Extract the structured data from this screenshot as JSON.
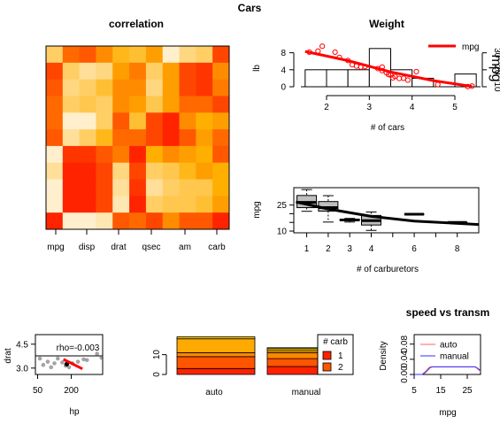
{
  "page": {
    "title": "Cars"
  },
  "colors": {
    "heat_white": "#ffffff",
    "heat_yellow": "#ffff66",
    "heat_orange": "#ff9900",
    "heat_red": "#ff0000",
    "mpg_line": "#ff0000",
    "auto": "#ff6060",
    "manual": "#3030ff"
  },
  "chart_data": [
    {
      "id": "correlation",
      "type": "heatmap",
      "title": "correlation",
      "x_tick_labels": [
        "mpg",
        "disp",
        "drat",
        "qsec",
        "am",
        "carb"
      ],
      "grid_values": [
        [
          0.3,
          0.7,
          0.75,
          0.6,
          0.45,
          0.4,
          0.55,
          0.1,
          0.25,
          0.3,
          0.8
        ],
        [
          0.8,
          0.3,
          0.2,
          0.25,
          0.55,
          0.65,
          0.3,
          0.55,
          0.8,
          0.85,
          0.6
        ],
        [
          0.75,
          0.25,
          0.3,
          0.4,
          0.6,
          0.6,
          0.25,
          0.55,
          0.8,
          0.85,
          0.65
        ],
        [
          0.7,
          0.3,
          0.35,
          0.3,
          0.6,
          0.55,
          0.35,
          0.55,
          0.7,
          0.7,
          0.8
        ],
        [
          0.7,
          0.1,
          0.1,
          0.3,
          0.75,
          0.4,
          0.8,
          0.9,
          0.6,
          0.5,
          0.55
        ],
        [
          0.75,
          0.2,
          0.3,
          0.45,
          0.7,
          0.7,
          0.8,
          0.9,
          0.75,
          0.55,
          0.7
        ],
        [
          0.1,
          0.85,
          0.85,
          0.75,
          0.65,
          0.9,
          0.5,
          0.6,
          0.55,
          0.5,
          0.75
        ],
        [
          0.2,
          0.9,
          0.9,
          0.8,
          0.25,
          0.8,
          0.3,
          0.35,
          0.45,
          0.55,
          0.5
        ],
        [
          0.1,
          0.9,
          0.9,
          0.8,
          0.2,
          0.85,
          0.2,
          0.3,
          0.35,
          0.35,
          0.5
        ],
        [
          0.1,
          0.9,
          0.9,
          0.8,
          0.15,
          0.9,
          0.3,
          0.35,
          0.35,
          0.4,
          0.55
        ],
        [
          0.9,
          0.1,
          0.1,
          0.15,
          0.75,
          0.7,
          0.8,
          0.6,
          0.75,
          0.75,
          0.9
        ]
      ]
    },
    {
      "id": "weight",
      "type": "bar",
      "title": "Weight",
      "xlabel": "# of cars",
      "ylabel": "lb",
      "x_ticks": [
        2,
        3,
        4,
        5
      ],
      "y_ticks": [
        0,
        4,
        8
      ],
      "right_y_ticks": [
        10,
        20,
        30
      ],
      "right_axis_label": "mpg",
      "xlim": [
        1.4,
        5.6
      ],
      "ylim": [
        0,
        10
      ],
      "histogram": [
        {
          "from": 1.5,
          "to": 2.0,
          "count": 4
        },
        {
          "from": 2.0,
          "to": 2.5,
          "count": 4
        },
        {
          "from": 2.5,
          "to": 3.0,
          "count": 4
        },
        {
          "from": 3.0,
          "to": 3.5,
          "count": 9
        },
        {
          "from": 3.5,
          "to": 4.0,
          "count": 4
        },
        {
          "from": 4.0,
          "to": 4.5,
          "count": 2
        },
        {
          "from": 4.5,
          "to": 5.0,
          "count": 0
        },
        {
          "from": 5.0,
          "to": 5.5,
          "count": 3
        }
      ],
      "mpg_points": [
        [
          1.6,
          30.4
        ],
        [
          1.8,
          31.0
        ],
        [
          1.9,
          33.9
        ],
        [
          2.2,
          30.4
        ],
        [
          2.3,
          27.3
        ],
        [
          2.5,
          25.5
        ],
        [
          2.6,
          23.0
        ],
        [
          2.7,
          22.2
        ],
        [
          2.8,
          21.6
        ],
        [
          2.9,
          21.9
        ],
        [
          3.2,
          20.7
        ],
        [
          3.3,
          21.6
        ],
        [
          3.3,
          19.5
        ],
        [
          3.4,
          18.3
        ],
        [
          3.45,
          17.2
        ],
        [
          3.5,
          16.9
        ],
        [
          3.55,
          15.3
        ],
        [
          3.6,
          16.1
        ],
        [
          3.7,
          14.9
        ],
        [
          3.8,
          15.0
        ],
        [
          3.9,
          13.9
        ],
        [
          4.1,
          18.9
        ],
        [
          4.6,
          11.3
        ],
        [
          5.3,
          10.1
        ],
        [
          5.4,
          10.4
        ]
      ],
      "mpg_line": [
        [
          1.5,
          30.8
        ],
        [
          2.5,
          25.4
        ],
        [
          3.5,
          18.7
        ],
        [
          4.5,
          13.6
        ],
        [
          5.4,
          10.2
        ]
      ],
      "legend": {
        "label": "mpg",
        "position": "top-right"
      }
    },
    {
      "id": "carburetors",
      "type": "box",
      "title": "",
      "xlabel": "# of carburetors",
      "ylabel": "mpg",
      "x_ticks": [
        1,
        2,
        3,
        4,
        5,
        6,
        7,
        8
      ],
      "y_ticks": [
        10,
        15,
        20,
        25
      ],
      "y_tick_labels": [
        "10",
        "",
        "",
        "25"
      ],
      "xlim": [
        0.4,
        9.0
      ],
      "ylim": [
        9,
        35
      ],
      "boxes": [
        {
          "carb": 1,
          "min": 21.4,
          "q1": 23.5,
          "median": 26.5,
          "q3": 30.5,
          "max": 33.9
        },
        {
          "carb": 2,
          "min": 15.2,
          "q1": 21.5,
          "median": 23.5,
          "q3": 27.0,
          "max": 30.4
        },
        {
          "carb": 3,
          "min": 15.2,
          "q1": 16.0,
          "median": 16.4,
          "q3": 16.9,
          "max": 17.3
        },
        {
          "carb": 4,
          "min": 10.4,
          "q1": 13.5,
          "median": 16.0,
          "q3": 19.0,
          "max": 21.0
        },
        {
          "carb": 6,
          "min": 19.7,
          "q1": 19.7,
          "median": 19.7,
          "q3": 19.7,
          "max": 19.7
        },
        {
          "carb": 8,
          "min": 15.0,
          "q1": 15.0,
          "median": 15.0,
          "q3": 15.0,
          "max": 15.0
        }
      ],
      "trend_line": [
        [
          0.5,
          26.8
        ],
        [
          2.0,
          22.7
        ],
        [
          4.0,
          18.5
        ],
        [
          6.0,
          15.8
        ],
        [
          9.0,
          13.8
        ]
      ]
    },
    {
      "id": "drat_hp",
      "type": "scatter",
      "title": "",
      "xlabel": "hp",
      "ylabel": "drat",
      "x_ticks": [
        50,
        200
      ],
      "y_ticks": [
        3.0,
        4.5
      ],
      "xlim": [
        40,
        340
      ],
      "ylim": [
        2.6,
        5.1
      ],
      "annotation": "rho=-0.003",
      "points": [
        [
          60,
          3.6
        ],
        [
          75,
          3.2
        ],
        [
          95,
          3.4
        ],
        [
          110,
          3.05
        ],
        [
          125,
          3.3
        ],
        [
          140,
          3.6
        ],
        [
          160,
          3.35
        ],
        [
          175,
          3.15
        ],
        [
          190,
          3.05
        ],
        [
          205,
          3.3
        ],
        [
          230,
          3.4
        ],
        [
          255,
          3.55
        ],
        [
          270,
          3.5
        ],
        [
          315,
          3.9
        ],
        [
          335,
          3.65
        ]
      ],
      "highlight_points": [
        [
          180,
          3.25
        ]
      ],
      "trend_line": [
        [
          165,
          3.55
        ],
        [
          250,
          2.95
        ]
      ]
    },
    {
      "id": "carb_stacked",
      "type": "bar",
      "title": "",
      "categories": [
        "auto",
        "manual"
      ],
      "y_ticks": [
        0,
        10
      ],
      "ylim": [
        0,
        21
      ],
      "legend": {
        "title": "# carb",
        "entries": [
          "1",
          "2"
        ],
        "position": "top-right"
      },
      "stacks": [
        [
          3,
          6,
          2,
          7,
          1
        ],
        [
          4,
          4,
          3,
          1,
          1,
          0.5
        ]
      ],
      "stack_colors": [
        "#ff2200",
        "#ff5500",
        "#ff8800",
        "#ffaa00",
        "#ffcc00",
        "#ffee55"
      ]
    },
    {
      "id": "speed_transm",
      "type": "line",
      "title": "speed vs transm",
      "xlabel": "mpg",
      "ylabel": "Density",
      "x_ticks": [
        5,
        15,
        25
      ],
      "y_ticks": [
        0.0,
        0.04,
        0.08
      ],
      "y_tick_labels": [
        "0.00",
        "0.04",
        "0.08"
      ],
      "xlim": [
        5,
        30
      ],
      "ylim": [
        0,
        0.105
      ],
      "series": [
        {
          "name": "auto",
          "points": [
            [
              5,
              0.0
            ],
            [
              8,
              0.0
            ],
            [
              9,
              0.006
            ],
            [
              10,
              0.014
            ],
            [
              11,
              0.02
            ],
            [
              12,
              0.02
            ],
            [
              28,
              0.02
            ],
            [
              29,
              0.014
            ],
            [
              30,
              0.008
            ]
          ]
        },
        {
          "name": "manual",
          "points": [
            [
              5,
              0.0
            ],
            [
              8,
              0.0
            ],
            [
              9,
              0.004
            ],
            [
              10,
              0.01
            ],
            [
              11,
              0.018
            ],
            [
              12,
              0.02
            ],
            [
              28,
              0.02
            ],
            [
              29,
              0.016
            ],
            [
              30,
              0.01
            ]
          ]
        }
      ]
    }
  ]
}
